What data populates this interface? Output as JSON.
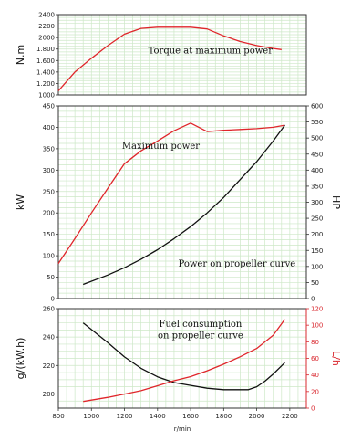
{
  "chart_data": [
    {
      "type": "line",
      "ylabel": "N.m",
      "xlim": [
        800,
        2300
      ],
      "ylim": [
        1000,
        2400
      ],
      "y_ticks": [
        1000,
        1200,
        1400,
        1600,
        1800,
        2000,
        2200,
        2400
      ],
      "y_tick_labels": [
        "1000",
        "1.200",
        "1.400",
        "1.600",
        "1.800",
        "2000",
        "2200",
        "2400"
      ],
      "grid": true,
      "series": [
        {
          "color": "#e0262b",
          "x": [
            800,
            900,
            1000,
            1100,
            1200,
            1300,
            1400,
            1500,
            1600,
            1700,
            1800,
            1900,
            2000,
            2100,
            2150
          ],
          "y": [
            1070,
            1400,
            1640,
            1860,
            2060,
            2160,
            2180,
            2180,
            2180,
            2150,
            2030,
            1930,
            1860,
            1810,
            1790
          ]
        }
      ],
      "annotations": [
        {
          "text": "Torque at maximum power",
          "x": 1720,
          "y": 1720
        }
      ]
    },
    {
      "type": "line",
      "ylabel": "kW",
      "ylabel_right": "HP",
      "xlim": [
        800,
        2300
      ],
      "ylim": [
        0,
        450
      ],
      "ylim_right": [
        0,
        600
      ],
      "y_ticks": [
        0,
        50,
        100,
        150,
        200,
        250,
        300,
        350,
        400,
        450
      ],
      "y_ticks_right": [
        0,
        50,
        100,
        150,
        200,
        250,
        300,
        350,
        400,
        450,
        500,
        550,
        600
      ],
      "grid": true,
      "series": [
        {
          "color": "#e0262b",
          "x": [
            800,
            900,
            1000,
            1100,
            1200,
            1300,
            1400,
            1500,
            1600,
            1700,
            1800,
            1900,
            2000,
            2100,
            2170
          ],
          "y": [
            82,
            140,
            200,
            258,
            315,
            345,
            368,
            392,
            410,
            390,
            393,
            395,
            397,
            400,
            405
          ]
        },
        {
          "color": "#111111",
          "x": [
            950,
            1100,
            1200,
            1300,
            1400,
            1500,
            1600,
            1700,
            1800,
            1900,
            2000,
            2100,
            2170
          ],
          "y": [
            33,
            55,
            72,
            92,
            114,
            140,
            168,
            200,
            236,
            278,
            320,
            368,
            405
          ]
        }
      ],
      "annotations": [
        {
          "text": "Maximum power",
          "x": 1420,
          "y": 350
        },
        {
          "text": "Power on propeller curve",
          "x": 1880,
          "y": 75
        }
      ]
    },
    {
      "type": "line",
      "ylabel": "g/(kW.h)",
      "ylabel_right": "L/h",
      "xlabel": "r/min",
      "xlim": [
        800,
        2300
      ],
      "ylim": [
        190,
        260
      ],
      "ylim_right": [
        0,
        120
      ],
      "x_ticks": [
        800,
        1000,
        1200,
        1400,
        1600,
        1800,
        2000,
        2200
      ],
      "y_ticks": [
        200,
        220,
        240,
        260
      ],
      "y_ticks_right": [
        0,
        20,
        40,
        60,
        80,
        100,
        120
      ],
      "grid": true,
      "series": [
        {
          "color": "#111111",
          "axis": "left",
          "x": [
            950,
            1100,
            1200,
            1300,
            1400,
            1500,
            1600,
            1700,
            1800,
            1900,
            1950,
            2000,
            2050,
            2100,
            2170
          ],
          "y": [
            250,
            236,
            226,
            218,
            212,
            208,
            206,
            204,
            203,
            203,
            203,
            205,
            209,
            214,
            222
          ]
        },
        {
          "color": "#e0262b",
          "axis": "right",
          "x": [
            950,
            1100,
            1200,
            1300,
            1400,
            1500,
            1600,
            1700,
            1800,
            1900,
            2000,
            2100,
            2170
          ],
          "y": [
            8,
            13,
            17,
            21,
            27,
            33,
            38,
            45,
            53,
            62,
            72,
            88,
            107
          ]
        }
      ],
      "annotations": [
        {
          "text": "Fuel consumption",
          "x": 1660,
          "y": 247
        },
        {
          "text": "on propeller curve",
          "x": 1660,
          "y": 239
        }
      ]
    }
  ]
}
